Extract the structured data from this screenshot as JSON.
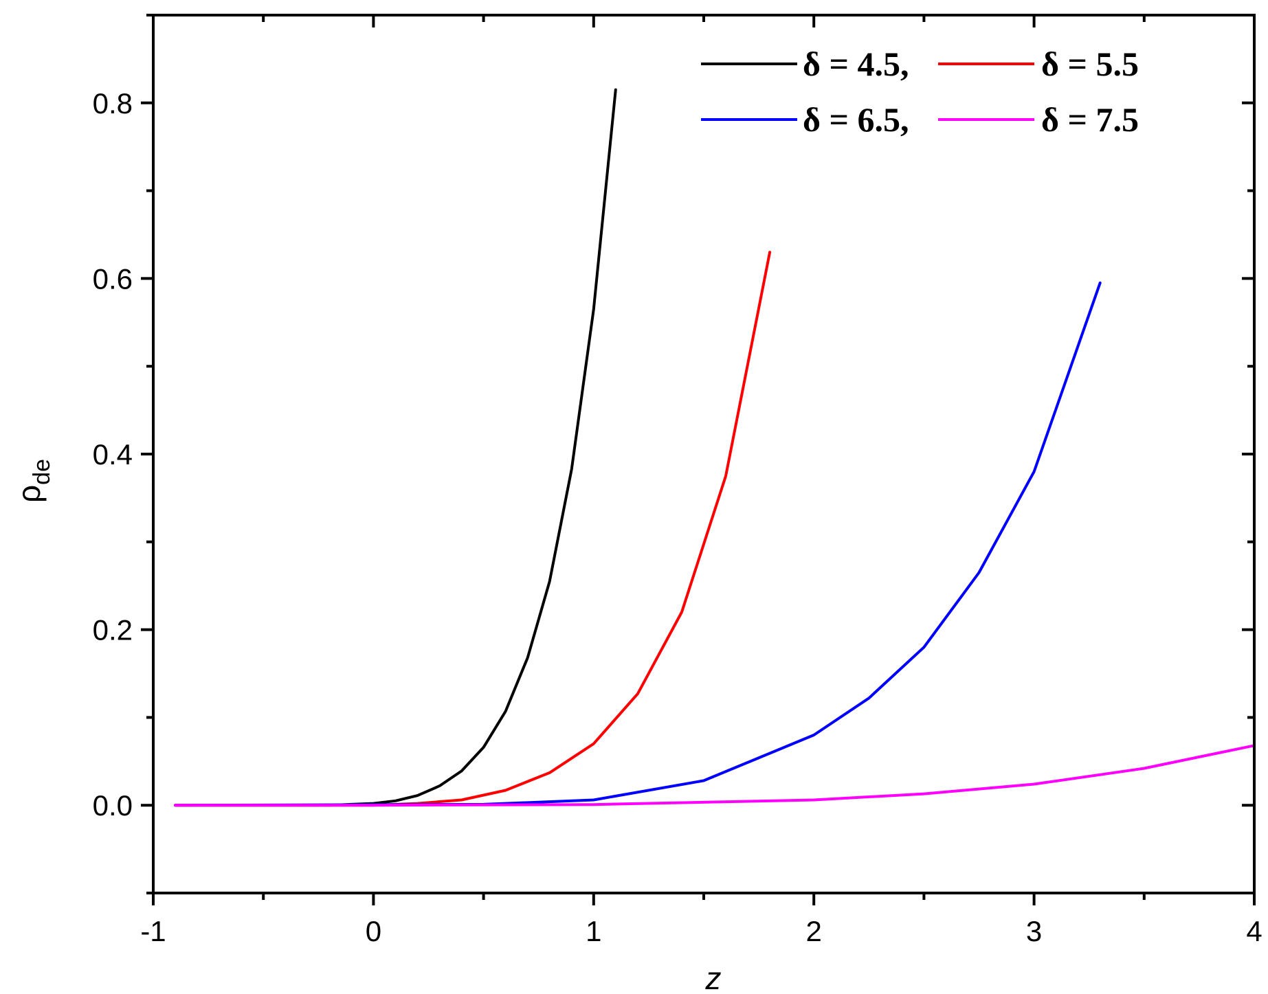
{
  "chart_data": {
    "type": "line",
    "xlabel": "z",
    "ylabel": "ρ",
    "ylabel_sub": "de",
    "xlim": [
      -1,
      4
    ],
    "ylim": [
      -0.1,
      0.9
    ],
    "x_ticks": [
      -1,
      0,
      1,
      2,
      3,
      4
    ],
    "x_tick_labels": [
      "-1",
      "0",
      "1",
      "2",
      "3",
      "4"
    ],
    "y_ticks": [
      0.0,
      0.2,
      0.4,
      0.6,
      0.8
    ],
    "y_tick_labels": [
      "0.0",
      "0.2",
      "0.4",
      "0.6",
      "0.8"
    ],
    "grid": false,
    "legend_position": "top-right",
    "series": [
      {
        "name": "δ = 4.5,",
        "color": "#000000",
        "x": [
          -0.9,
          -0.2,
          0.0,
          0.1,
          0.2,
          0.3,
          0.4,
          0.5,
          0.6,
          0.7,
          0.8,
          0.9,
          1.0,
          1.1
        ],
        "y": [
          0.0,
          0.0,
          0.002,
          0.005,
          0.011,
          0.022,
          0.039,
          0.066,
          0.107,
          0.168,
          0.255,
          0.383,
          0.565,
          0.815
        ]
      },
      {
        "name": "δ = 5.5",
        "color": "#ff0000",
        "x": [
          -0.9,
          0.0,
          0.2,
          0.4,
          0.6,
          0.8,
          1.0,
          1.2,
          1.4,
          1.6,
          1.8
        ],
        "y": [
          0.0,
          0.0,
          0.002,
          0.006,
          0.017,
          0.037,
          0.07,
          0.127,
          0.22,
          0.375,
          0.63
        ]
      },
      {
        "name": "δ = 6.5,",
        "color": "#0000ff",
        "x": [
          -0.9,
          0.5,
          1.0,
          1.5,
          2.0,
          2.25,
          2.5,
          2.75,
          3.0,
          3.3
        ],
        "y": [
          0.0,
          0.001,
          0.006,
          0.028,
          0.08,
          0.122,
          0.18,
          0.265,
          0.38,
          0.595
        ]
      },
      {
        "name": "δ = 7.5",
        "color": "#ff00ff",
        "x": [
          -0.9,
          0.0,
          1.0,
          2.0,
          2.5,
          3.0,
          3.5,
          4.0
        ],
        "y": [
          0.0,
          0.0,
          0.0008,
          0.006,
          0.013,
          0.024,
          0.042,
          0.068
        ]
      }
    ]
  }
}
